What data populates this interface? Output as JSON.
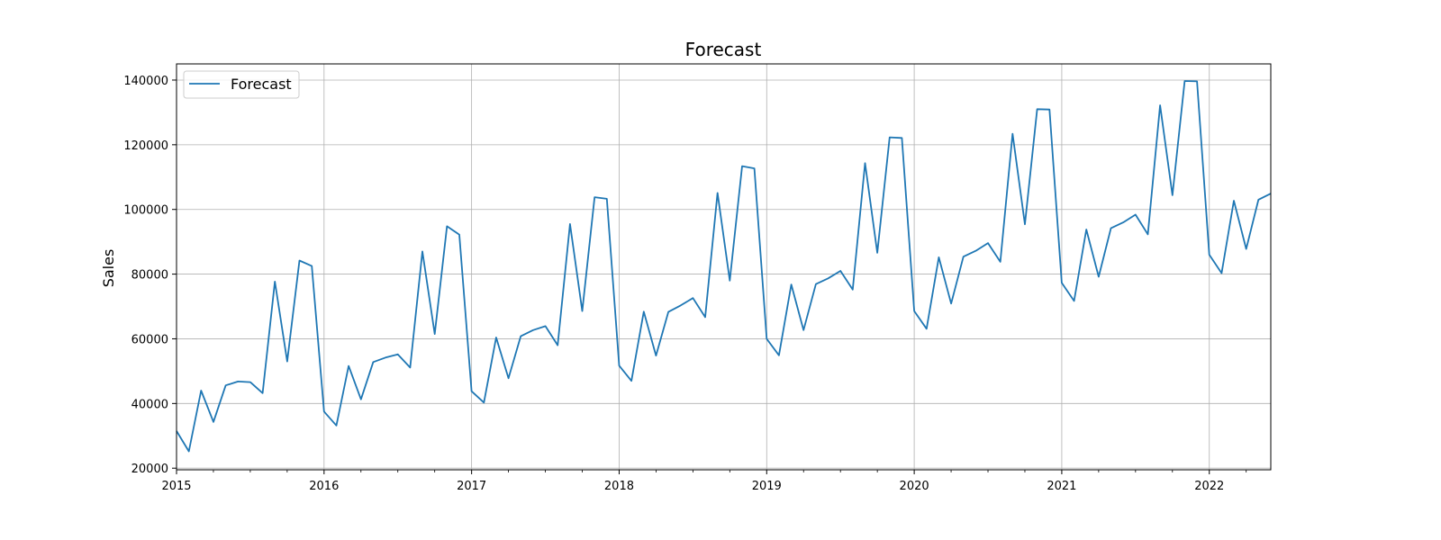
{
  "chart_data": {
    "type": "line",
    "title": "Forecast",
    "xlabel": "",
    "ylabel": "Sales",
    "x": [
      "2015-01",
      "2015-02",
      "2015-03",
      "2015-04",
      "2015-05",
      "2015-06",
      "2015-07",
      "2015-08",
      "2015-09",
      "2015-10",
      "2015-11",
      "2015-12",
      "2016-01",
      "2016-02",
      "2016-03",
      "2016-04",
      "2016-05",
      "2016-06",
      "2016-07",
      "2016-08",
      "2016-09",
      "2016-10",
      "2016-11",
      "2016-12",
      "2017-01",
      "2017-02",
      "2017-03",
      "2017-04",
      "2017-05",
      "2017-06",
      "2017-07",
      "2017-08",
      "2017-09",
      "2017-10",
      "2017-11",
      "2017-12",
      "2018-01",
      "2018-02",
      "2018-03",
      "2018-04",
      "2018-05",
      "2018-06",
      "2018-07",
      "2018-08",
      "2018-09",
      "2018-10",
      "2018-11",
      "2018-12",
      "2019-01",
      "2019-02",
      "2019-03",
      "2019-04",
      "2019-05",
      "2019-06",
      "2019-07",
      "2019-08",
      "2019-09",
      "2019-10",
      "2019-11",
      "2019-12",
      "2020-01",
      "2020-02",
      "2020-03",
      "2020-04",
      "2020-05",
      "2020-06",
      "2020-07",
      "2020-08",
      "2020-09",
      "2020-10",
      "2020-11",
      "2020-12",
      "2021-01",
      "2021-02",
      "2021-03",
      "2021-04",
      "2021-05",
      "2021-06",
      "2021-07",
      "2021-08",
      "2021-09",
      "2021-10",
      "2021-11",
      "2021-12",
      "2022-01",
      "2022-02",
      "2022-03",
      "2022-04",
      "2022-05",
      "2022-06"
    ],
    "series": [
      {
        "name": "Forecast",
        "color": "#1f77b4",
        "values": [
          31500,
          25200,
          44000,
          34300,
          45600,
          46800,
          46600,
          43200,
          77700,
          53000,
          84200,
          82500,
          37500,
          33200,
          51600,
          41300,
          52800,
          54200,
          55200,
          51100,
          87000,
          61500,
          94800,
          92200,
          43800,
          40300,
          60400,
          47800,
          60800,
          62700,
          63900,
          58000,
          95500,
          68600,
          103800,
          103300,
          51700,
          47000,
          68400,
          54800,
          68300,
          70300,
          72600,
          66700,
          105100,
          78000,
          113400,
          112700,
          60000,
          54900,
          76800,
          62700,
          76900,
          78700,
          81000,
          75200,
          114300,
          86600,
          122300,
          122100,
          68600,
          63100,
          85200,
          70900,
          85400,
          87200,
          89600,
          83800,
          123400,
          95400,
          131000,
          130900,
          77300,
          71700,
          93800,
          79200,
          94200,
          96000,
          98400,
          92300,
          132200,
          104400,
          139700,
          139600,
          86000,
          80300,
          102700,
          87800,
          103000,
          104900
        ]
      }
    ],
    "xlim": [
      "2015-01",
      "2022-06"
    ],
    "ylim": [
      19500,
      145000
    ],
    "x_ticks": [
      "2015",
      "2016",
      "2017",
      "2018",
      "2019",
      "2020",
      "2021",
      "2022"
    ],
    "y_ticks": [
      "20000",
      "40000",
      "60000",
      "80000",
      "100000",
      "120000",
      "140000"
    ],
    "grid": true,
    "legend": {
      "placement": "top-left",
      "entries": [
        "Forecast"
      ]
    }
  }
}
